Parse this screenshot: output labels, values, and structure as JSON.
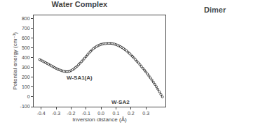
{
  "chart_data": {
    "type": "line",
    "title": "Water Complex",
    "xlabel": "Inversion distance (Å)",
    "ylabel": "Potential energy (cm⁻¹)",
    "x": [
      -0.41,
      -0.4,
      -0.39,
      -0.38,
      -0.37,
      -0.36,
      -0.35,
      -0.34,
      -0.33,
      -0.32,
      -0.31,
      -0.3,
      -0.29,
      -0.28,
      -0.27,
      -0.26,
      -0.25,
      -0.24,
      -0.23,
      -0.22,
      -0.21,
      -0.2,
      -0.19,
      -0.18,
      -0.17,
      -0.16,
      -0.15,
      -0.14,
      -0.13,
      -0.12,
      -0.11,
      -0.1,
      -0.09,
      -0.08,
      -0.07,
      -0.06,
      -0.05,
      -0.04,
      -0.03,
      -0.02,
      -0.01,
      0.0,
      0.01,
      0.02,
      0.03,
      0.04,
      0.05,
      0.06,
      0.07,
      0.08,
      0.09,
      0.1,
      0.11,
      0.12,
      0.13,
      0.14,
      0.15,
      0.16,
      0.17,
      0.18,
      0.19,
      0.2,
      0.21,
      0.22,
      0.23,
      0.24,
      0.25,
      0.26,
      0.27,
      0.28,
      0.29,
      0.3,
      0.31,
      0.32,
      0.33,
      0.34,
      0.35,
      0.36,
      0.37,
      0.38,
      0.39,
      0.4,
      0.41
    ],
    "values": [
      380,
      372,
      364,
      356,
      348,
      340,
      332,
      323,
      315,
      306,
      298,
      290,
      282,
      276,
      271,
      265,
      261,
      258,
      256,
      257,
      261,
      267,
      276,
      286,
      299,
      312,
      327,
      343,
      359,
      375,
      393,
      411,
      429,
      447,
      463,
      478,
      492,
      503,
      513,
      521,
      528,
      534,
      538,
      541,
      543,
      544,
      545,
      545,
      544,
      541,
      537,
      532,
      526,
      519,
      511,
      502,
      492,
      481,
      469,
      456,
      442,
      427,
      412,
      396,
      379,
      362,
      345,
      327,
      309,
      291,
      272,
      253,
      233,
      213,
      193,
      172,
      150,
      127,
      103,
      78,
      52,
      25,
      0
    ],
    "color": "#000000",
    "marker": "circle",
    "grid": false,
    "xlim": [
      -0.45,
      0.43
    ],
    "xticks": [
      -0.4,
      -0.3,
      -0.2,
      -0.1,
      {
        "value": 0.0,
        "label": "0.0"
      },
      0.1,
      0.2,
      0.3
    ],
    "ylim": [
      -100,
      830
    ],
    "yticks": [
      -100,
      0,
      100,
      200,
      300,
      400,
      500,
      600,
      700,
      800
    ],
    "annotations": [
      "W-SA1(A)",
      "W-SA2",
      "Dimer"
    ]
  }
}
